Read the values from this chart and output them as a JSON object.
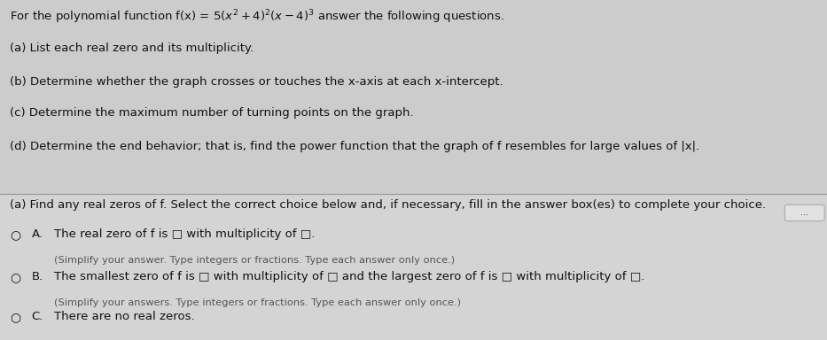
{
  "bg_color_top": "#cccccc",
  "bg_color_bottom": "#d4d4d4",
  "divider_color": "#999999",
  "text_color": "#111111",
  "small_text_color": "#555555",
  "font_size_body": 9.5,
  "font_size_small": 8.2,
  "title_line": "For the polynomial function f(x)​=​5 (x²​+​4)²(x−​4)³ answer the following questions.",
  "top_lines": [
    "(a) List each real zero and its multiplicity.",
    "(b) Determine whether the graph crosses or touches the x-axis at each x-intercept.",
    "(c) Determine the maximum number of turning points on the graph.",
    "(d) Determine the end behavior; that is, find the power function that the graph of f resembles for large values of |x|."
  ],
  "section_label": "(a) Find any real zeros of f. Select the correct choice below and, if necessary, fill in the answer box(es) to complete your choice.",
  "choice_A_line1": "The real zero of f is □ with multiplicity of □.",
  "choice_A_line2": "(Simplify your answer. Type integers or fractions. Type each answer only once.)",
  "choice_B_line1": "The smallest zero of f is □ with multiplicity of □ and the largest zero of f is □ with multiplicity of □.",
  "choice_B_line2": "(Simplify your answers. Type integers or fractions. Type each answer only once.)",
  "choice_C_line1": "There are no real zeros."
}
